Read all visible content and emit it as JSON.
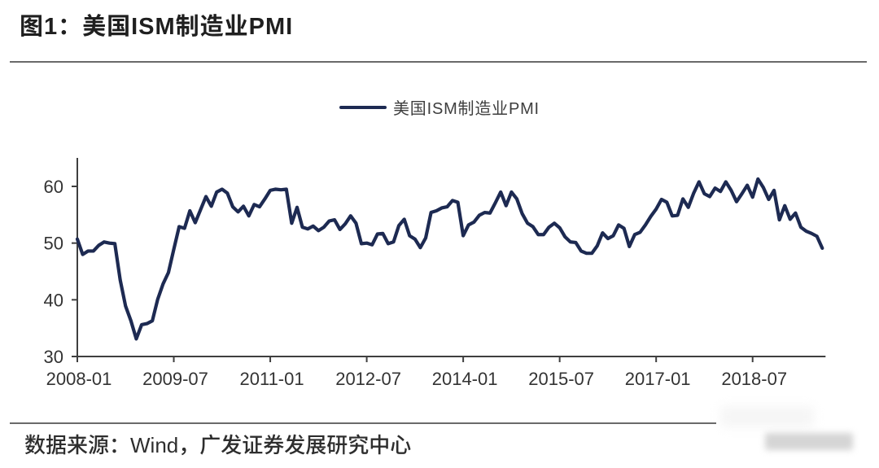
{
  "page": {
    "background": "#ffffff"
  },
  "figure": {
    "title": "图1：美国ISM制造业PMI",
    "source_note": "数据来源：Wind，广发证券发展研究中心"
  },
  "chart_data": {
    "type": "line",
    "title": "美国ISM制造业PMI",
    "legend_position": "top-center",
    "grid": false,
    "line_color": "#1d2a52",
    "axis_color": "#3f3f3f",
    "tick_label_color": "#333333",
    "x_start": "2008-01",
    "x_frequency": "monthly",
    "x_end": "2019-08",
    "x_tick_labels": [
      "2008-01",
      "2009-07",
      "2011-01",
      "2012-07",
      "2014-01",
      "2015-07",
      "2017-01",
      "2018-07"
    ],
    "x_tick_month_offsets": [
      0,
      18,
      36,
      54,
      72,
      90,
      108,
      126
    ],
    "y_ticks": [
      30,
      40,
      50,
      60
    ],
    "ylim": [
      30,
      65
    ],
    "series": [
      {
        "name": "美国ISM制造业PMI",
        "color": "#1d2a52",
        "values": [
          50.7,
          48.0,
          48.6,
          48.6,
          49.6,
          50.2,
          50.0,
          49.9,
          43.5,
          38.9,
          36.3,
          33.1,
          35.6,
          35.8,
          36.3,
          40.1,
          42.8,
          44.8,
          48.9,
          52.9,
          52.6,
          55.7,
          53.6,
          55.9,
          58.2,
          56.5,
          59.0,
          59.5,
          58.8,
          56.4,
          55.5,
          56.5,
          54.8,
          56.8,
          56.4,
          57.8,
          59.3,
          59.5,
          59.4,
          59.5,
          53.5,
          56.3,
          52.8,
          52.5,
          53.0,
          52.2,
          52.8,
          53.9,
          54.1,
          52.4,
          53.4,
          54.8,
          53.5,
          49.9,
          50.0,
          49.7,
          51.6,
          51.7,
          49.9,
          50.2,
          53.1,
          54.2,
          51.3,
          50.7,
          49.2,
          50.9,
          55.4,
          55.7,
          56.2,
          56.4,
          57.5,
          57.2,
          51.3,
          53.2,
          53.7,
          54.9,
          55.4,
          55.3,
          57.1,
          59.0,
          56.6,
          59.0,
          57.8,
          55.2,
          53.5,
          52.9,
          51.5,
          51.5,
          52.8,
          53.5,
          52.7,
          51.1,
          50.2,
          50.1,
          48.6,
          48.2,
          48.2,
          49.5,
          51.8,
          50.8,
          51.3,
          53.2,
          52.6,
          49.4,
          51.5,
          51.9,
          53.2,
          54.7,
          56.0,
          57.7,
          57.2,
          54.8,
          54.9,
          57.8,
          56.3,
          58.8,
          60.8,
          58.7,
          58.2,
          59.7,
          59.1,
          60.8,
          59.3,
          57.3,
          58.7,
          60.2,
          58.1,
          61.3,
          59.8,
          57.7,
          59.3,
          54.1,
          56.6,
          54.2,
          55.3,
          52.8,
          52.1,
          51.7,
          51.2,
          49.1
        ]
      }
    ]
  }
}
